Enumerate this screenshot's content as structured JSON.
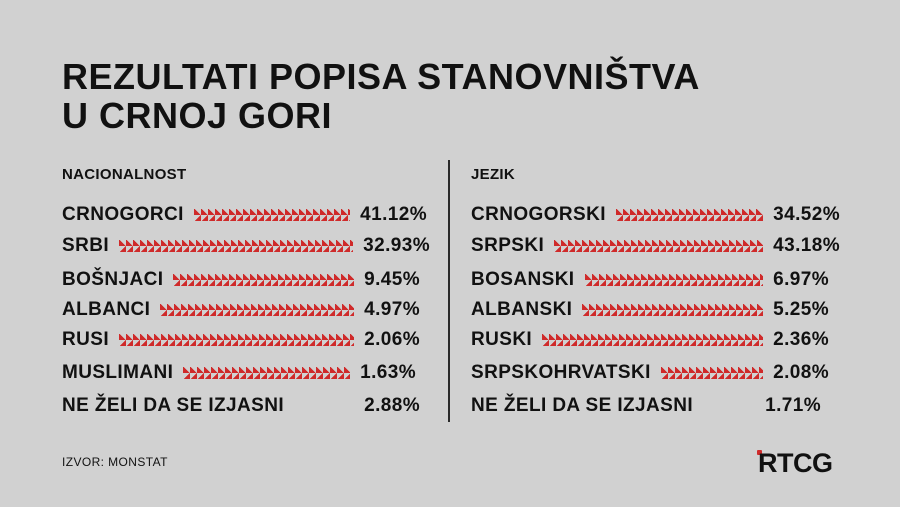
{
  "title": {
    "line1": "REZULTATI POPISA STANOVNIŠTVA",
    "line2": "U CRNOJ GORI"
  },
  "nacionalnost": {
    "heading": "NACIONALNOST",
    "rows": [
      {
        "label": "CRNOGORCI",
        "value": "41.12%"
      },
      {
        "label": "SRBI",
        "value": "32.93%"
      },
      {
        "label": "BOŠNJACI",
        "value": "9.45%"
      },
      {
        "label": "ALBANCI",
        "value": "4.97%"
      },
      {
        "label": "RUSI",
        "value": "2.06%"
      },
      {
        "label": "MUSLIMANI",
        "value": "1.63%"
      },
      {
        "label": "NE ŽELI DA SE IZJASNI",
        "value": "2.88%"
      }
    ]
  },
  "jezik": {
    "heading": "JEZIK",
    "rows": [
      {
        "label": "CRNOGORSKI",
        "value": "34.52%"
      },
      {
        "label": "SRPSKI",
        "value": "43.18%"
      },
      {
        "label": "BOSANSKI",
        "value": "6.97%"
      },
      {
        "label": "ALBANSKI",
        "value": "5.25%"
      },
      {
        "label": "RUSKI",
        "value": "2.36%"
      },
      {
        "label": "SRPSKOHRVATSKI",
        "value": "2.08%"
      },
      {
        "label": "NE ŽELI DA SE IZJASNI",
        "value": "1.71%"
      }
    ]
  },
  "source": "IZVOR: MONSTAT",
  "logo": "RTCG",
  "colors": {
    "background": "#d1d1d1",
    "accent_arrows": "#cf2a2a",
    "text": "#111111"
  }
}
